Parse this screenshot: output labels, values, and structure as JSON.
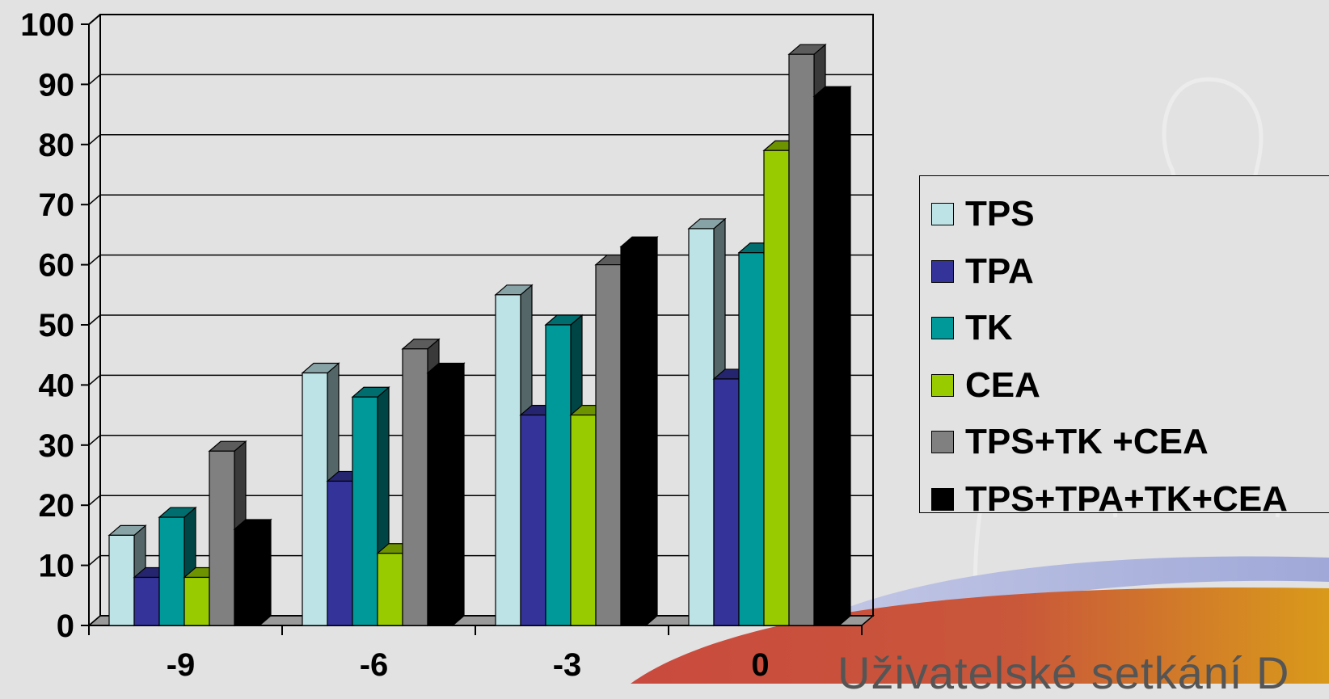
{
  "chart_data": {
    "type": "bar",
    "categories": [
      "-9",
      "-6",
      "-3",
      "0"
    ],
    "series": [
      {
        "name": "TPS",
        "values": [
          15,
          42,
          55,
          66
        ],
        "color": "#bde3e6"
      },
      {
        "name": "TPA",
        "values": [
          8,
          24,
          35,
          41
        ],
        "color": "#33339a"
      },
      {
        "name": "TK",
        "values": [
          18,
          38,
          50,
          62
        ],
        "color": "#009999"
      },
      {
        "name": "CEA",
        "values": [
          8,
          12,
          35,
          79
        ],
        "color": "#99cc00"
      },
      {
        "name": "TPS+TK +CEA",
        "values": [
          29,
          46,
          60,
          95
        ],
        "color": "#808080"
      },
      {
        "name": "TPS+TPA+TK+CEA",
        "values": [
          16,
          42,
          63,
          88
        ],
        "color": "#000000"
      }
    ],
    "ylim": [
      0,
      100
    ],
    "yticks": [
      "0",
      "10",
      "20",
      "30",
      "40",
      "50",
      "60",
      "70",
      "80",
      "90",
      "100"
    ],
    "grid": true,
    "legend_position": "right",
    "style": "3d-clustered-column"
  },
  "footer_text": "Uživatelské setkání D"
}
